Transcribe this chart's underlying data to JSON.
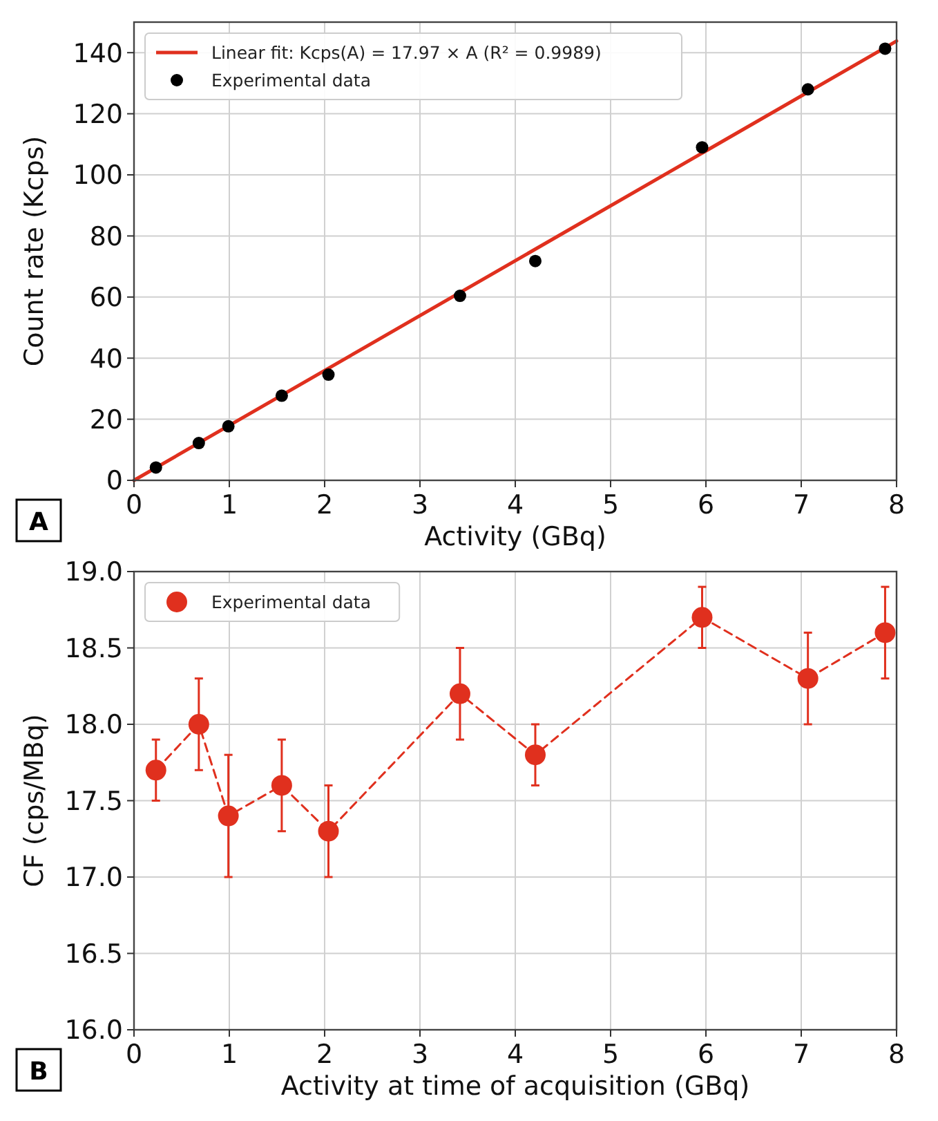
{
  "chart_data": [
    {
      "type": "scatter",
      "xlabel": "Activity (GBq)",
      "ylabel": "Count rate (Kcps)",
      "xlim": [
        0,
        8
      ],
      "xticks": [
        0,
        1,
        2,
        3,
        4,
        5,
        6,
        7,
        8
      ],
      "ylim": [
        0,
        150
      ],
      "yticks": [
        0,
        20,
        40,
        60,
        80,
        100,
        120,
        140
      ],
      "grid": true,
      "legend": "top left",
      "annotations": [
        "A"
      ],
      "series": [
        {
          "type": "line",
          "name": "Linear fit: Kcps(A) = 17.97 × A (R² = 0.9989)",
          "color": "#e0301e",
          "x": [
            0,
            8
          ],
          "values": [
            0,
            143.8
          ],
          "marker": "none",
          "line_style": "solid"
        },
        {
          "name": "Experimental data",
          "color": "#000000",
          "x": [
            0.23,
            0.68,
            0.99,
            1.55,
            2.04,
            3.42,
            4.21,
            5.96,
            7.07,
            7.88
          ],
          "values": [
            4.2,
            12.2,
            17.7,
            27.7,
            34.6,
            60.4,
            71.8,
            109,
            128,
            141.3
          ],
          "marker": "circle"
        }
      ]
    },
    {
      "type": "line",
      "xlabel": "Activity at time of acquisition (GBq)",
      "ylabel": "CF (cps/MBq)",
      "xlim": [
        0,
        8
      ],
      "xticks": [
        0,
        1,
        2,
        3,
        4,
        5,
        6,
        7,
        8
      ],
      "ylim": [
        16,
        19
      ],
      "yticks": [
        {
          "value": 16,
          "label": "16.0"
        },
        {
          "value": 16.5,
          "label": "16.5"
        },
        {
          "value": 17,
          "label": "17.0"
        },
        {
          "value": 17.5,
          "label": "17.5"
        },
        {
          "value": 18,
          "label": "18.0"
        },
        {
          "value": 18.5,
          "label": "18.5"
        },
        {
          "value": 19,
          "label": "19.0"
        }
      ],
      "grid": true,
      "legend": "top left",
      "annotations": [
        "B"
      ],
      "series": [
        {
          "name": "Experimental data",
          "color": "#e0301e",
          "x": [
            0.23,
            0.68,
            0.99,
            1.55,
            2.04,
            3.42,
            4.21,
            5.96,
            7.07,
            7.88
          ],
          "values": [
            17.7,
            18.0,
            17.4,
            17.6,
            17.3,
            18.2,
            17.8,
            18.7,
            18.3,
            18.6
          ],
          "errors": [
            0.2,
            0.3,
            0.4,
            0.3,
            0.3,
            0.3,
            0.2,
            0.2,
            0.3,
            0.3
          ],
          "marker": "circle",
          "line_style": "dashed"
        }
      ]
    }
  ]
}
